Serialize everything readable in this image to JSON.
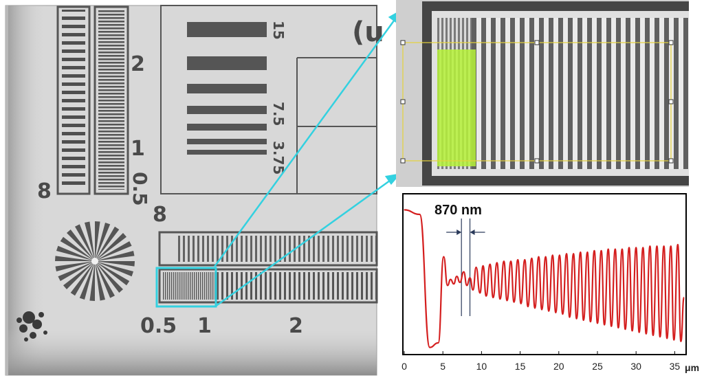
{
  "micrograph": {
    "scale_labels": {
      "top_left_2": "2",
      "top_left_1": "1",
      "top_left_05": "0.5",
      "top_left_8": "8",
      "box_8": "8",
      "box_15": "15",
      "box_75": "7.5",
      "box_375": "3.75",
      "box_paren": "(u",
      "bottom_05": "0.5",
      "bottom_1": "1",
      "bottom_2": "2"
    }
  },
  "annotation": {
    "measurement_label": "870 nm",
    "colors": {
      "arrow": "#33d1e0",
      "selection_box": "#33d1e0",
      "roi_highlight": "#b6f23a",
      "roi_frame": "#e6d33a",
      "profile": "#d41e1e"
    }
  },
  "chart_data": {
    "type": "line",
    "title": "",
    "xlabel": "μm",
    "ylabel": "",
    "xlim": [
      0,
      36.3
    ],
    "ylim": [
      0,
      1
    ],
    "x_ticks": [
      "0",
      "5",
      "10",
      "15",
      "20",
      "25",
      "30",
      "35"
    ],
    "series": [
      {
        "peaks": [
          {
            "x": 5.1,
            "y": 0.62
          },
          {
            "x": 6.0,
            "y": 0.47
          },
          {
            "x": 6.8,
            "y": 0.49
          },
          {
            "x": 7.7,
            "y": 0.52
          },
          {
            "x": 8.5,
            "y": 0.48
          },
          {
            "x": 9.3,
            "y": 0.55
          },
          {
            "x": 10.2,
            "y": 0.56
          },
          {
            "x": 11.1,
            "y": 0.57
          },
          {
            "x": 12.0,
            "y": 0.58
          },
          {
            "x": 12.9,
            "y": 0.59
          },
          {
            "x": 13.8,
            "y": 0.59
          },
          {
            "x": 14.7,
            "y": 0.6
          },
          {
            "x": 15.6,
            "y": 0.6
          },
          {
            "x": 16.5,
            "y": 0.61
          },
          {
            "x": 17.4,
            "y": 0.62
          },
          {
            "x": 18.3,
            "y": 0.62
          },
          {
            "x": 19.2,
            "y": 0.63
          },
          {
            "x": 20.1,
            "y": 0.63
          },
          {
            "x": 21.0,
            "y": 0.64
          },
          {
            "x": 21.9,
            "y": 0.64
          },
          {
            "x": 22.8,
            "y": 0.65
          },
          {
            "x": 23.7,
            "y": 0.65
          },
          {
            "x": 24.6,
            "y": 0.66
          },
          {
            "x": 25.5,
            "y": 0.66
          },
          {
            "x": 26.4,
            "y": 0.67
          },
          {
            "x": 27.3,
            "y": 0.67
          },
          {
            "x": 28.2,
            "y": 0.67
          },
          {
            "x": 29.1,
            "y": 0.68
          },
          {
            "x": 30.0,
            "y": 0.68
          },
          {
            "x": 30.9,
            "y": 0.68
          },
          {
            "x": 31.8,
            "y": 0.69
          },
          {
            "x": 32.7,
            "y": 0.69
          },
          {
            "x": 33.6,
            "y": 0.69
          },
          {
            "x": 34.5,
            "y": 0.69
          },
          {
            "x": 35.4,
            "y": 0.7
          }
        ],
        "troughs": [
          {
            "x": 0.0,
            "y": 0.93
          },
          {
            "x": 2.0,
            "y": 0.9
          },
          {
            "x": 3.3,
            "y": 0.02
          },
          {
            "x": 4.4,
            "y": 0.05
          },
          {
            "x": 5.6,
            "y": 0.43
          },
          {
            "x": 6.4,
            "y": 0.44
          },
          {
            "x": 7.2,
            "y": 0.45
          },
          {
            "x": 8.1,
            "y": 0.43
          },
          {
            "x": 8.9,
            "y": 0.4
          },
          {
            "x": 9.8,
            "y": 0.38
          },
          {
            "x": 10.6,
            "y": 0.36
          },
          {
            "x": 11.5,
            "y": 0.35
          },
          {
            "x": 12.4,
            "y": 0.34
          },
          {
            "x": 13.3,
            "y": 0.33
          },
          {
            "x": 14.2,
            "y": 0.32
          },
          {
            "x": 15.1,
            "y": 0.31
          },
          {
            "x": 16.0,
            "y": 0.29
          },
          {
            "x": 16.9,
            "y": 0.28
          },
          {
            "x": 17.8,
            "y": 0.27
          },
          {
            "x": 18.7,
            "y": 0.26
          },
          {
            "x": 19.6,
            "y": 0.25
          },
          {
            "x": 20.5,
            "y": 0.24
          },
          {
            "x": 21.4,
            "y": 0.22
          },
          {
            "x": 22.3,
            "y": 0.21
          },
          {
            "x": 23.2,
            "y": 0.2
          },
          {
            "x": 24.1,
            "y": 0.19
          },
          {
            "x": 25.0,
            "y": 0.18
          },
          {
            "x": 25.9,
            "y": 0.17
          },
          {
            "x": 26.8,
            "y": 0.16
          },
          {
            "x": 27.7,
            "y": 0.15
          },
          {
            "x": 28.6,
            "y": 0.14
          },
          {
            "x": 29.5,
            "y": 0.13
          },
          {
            "x": 30.4,
            "y": 0.12
          },
          {
            "x": 31.3,
            "y": 0.11
          },
          {
            "x": 32.2,
            "y": 0.1
          },
          {
            "x": 33.1,
            "y": 0.09
          },
          {
            "x": 34.0,
            "y": 0.08
          },
          {
            "x": 34.9,
            "y": 0.07
          },
          {
            "x": 35.8,
            "y": 0.06
          },
          {
            "x": 36.2,
            "y": 0.35
          }
        ]
      }
    ],
    "annotations": [
      {
        "text": "870 nm",
        "x_from": 7.4,
        "x_to": 8.5
      }
    ],
    "grid": false,
    "legend": "none"
  }
}
